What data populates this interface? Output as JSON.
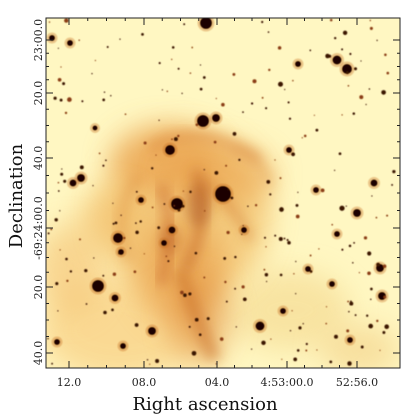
{
  "image": {
    "kind": "astronomical-image",
    "colormap": [
      "#fffbd6",
      "#f7d98f",
      "#eaa24d",
      "#c76a22",
      "#5a2206",
      "#150501"
    ]
  },
  "axes": {
    "xlabel": "Right ascension",
    "ylabel": "Declination",
    "x_ticks": [
      "12.0",
      "08.0",
      "04.0",
      "4:53:00.0",
      "52:56.0"
    ],
    "y_ticks": [
      "23:00.0",
      "20.0",
      "40.0",
      "-69:24:00.0",
      "20.0",
      "40.0"
    ]
  }
}
